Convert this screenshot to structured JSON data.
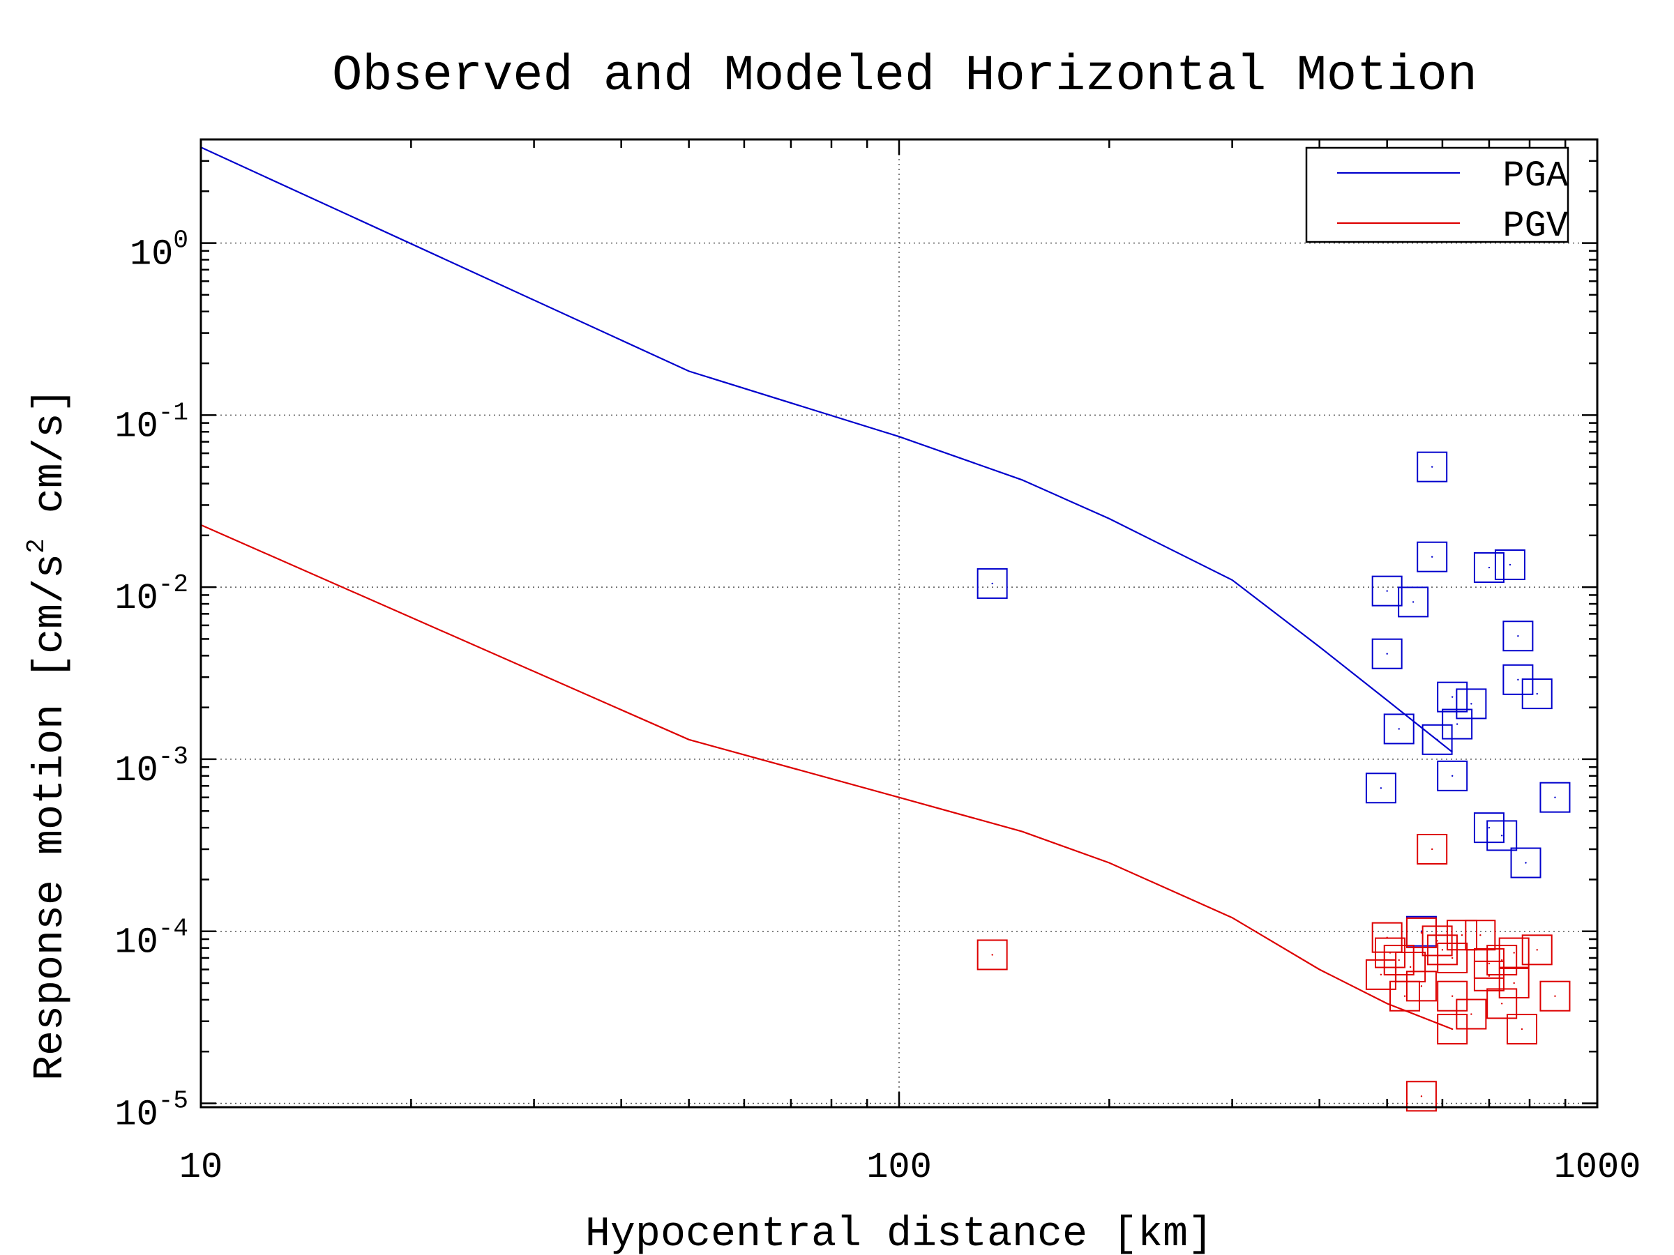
{
  "chart_data": {
    "type": "scatter",
    "title": "Observed and Modeled Horizontal Motion",
    "xlabel": "Hypocentral distance [km]",
    "ylabel": "Response motion [cm/s",
    "ylabel_sup": "2",
    "ylabel_tail": "  cm/s]",
    "xscale": "log",
    "yscale": "log",
    "xlim": [
      10,
      1000
    ],
    "ylim": [
      9.5e-06,
      4
    ],
    "xticks": [
      {
        "value": 10,
        "label": "10"
      },
      {
        "value": 100,
        "label": "100"
      },
      {
        "value": 1000,
        "label": "1000"
      }
    ],
    "yticks": [
      {
        "value": 1,
        "base": "10",
        "exp": "0"
      },
      {
        "value": 0.1,
        "base": "10",
        "exp": "-1"
      },
      {
        "value": 0.01,
        "base": "10",
        "exp": "-2"
      },
      {
        "value": 0.001,
        "base": "10",
        "exp": "-3"
      },
      {
        "value": 0.0001,
        "base": "10",
        "exp": "-4"
      },
      {
        "value": 1e-05,
        "base": "10",
        "exp": "-5"
      }
    ],
    "grid": true,
    "legend_position": "top-right",
    "colors": {
      "PGA": "#0000cc",
      "PGV": "#dd0000"
    },
    "series": [
      {
        "name": "PGA",
        "color": "#0000cc",
        "line": [
          [
            10,
            3.6
          ],
          [
            50,
            0.18
          ],
          [
            100,
            0.075
          ],
          [
            150,
            0.042
          ],
          [
            200,
            0.025
          ],
          [
            300,
            0.011
          ],
          [
            400,
            0.0045
          ],
          [
            500,
            0.0022
          ],
          [
            620,
            0.0011
          ]
        ],
        "points": [
          [
            136,
            0.0105
          ],
          [
            580,
            0.05
          ],
          [
            580,
            0.015
          ],
          [
            700,
            0.013
          ],
          [
            750,
            0.0135
          ],
          [
            500,
            0.0095
          ],
          [
            545,
            0.0082
          ],
          [
            500,
            0.0041
          ],
          [
            770,
            0.0052
          ],
          [
            770,
            0.0029
          ],
          [
            820,
            0.0024
          ],
          [
            620,
            0.0023
          ],
          [
            660,
            0.0021
          ],
          [
            630,
            0.0016
          ],
          [
            520,
            0.0015
          ],
          [
            590,
            0.0013
          ],
          [
            620,
            0.0008
          ],
          [
            490,
            0.00068
          ],
          [
            870,
            0.0006
          ],
          [
            700,
            0.0004
          ],
          [
            730,
            0.00036
          ],
          [
            790,
            0.00025
          ],
          [
            560,
            0.0001
          ]
        ]
      },
      {
        "name": "PGV",
        "color": "#dd0000",
        "line": [
          [
            10,
            0.023
          ],
          [
            50,
            0.0013
          ],
          [
            100,
            0.0006
          ],
          [
            150,
            0.00038
          ],
          [
            200,
            0.00025
          ],
          [
            300,
            0.00012
          ],
          [
            400,
            6e-05
          ],
          [
            500,
            3.8e-05
          ],
          [
            620,
            2.7e-05
          ]
        ],
        "points": [
          [
            136,
            7.3e-05
          ],
          [
            580,
            0.0003
          ],
          [
            500,
            9.2e-05
          ],
          [
            505,
            7.5e-05
          ],
          [
            520,
            6.8e-05
          ],
          [
            540,
            6.2e-05
          ],
          [
            560,
            9.8e-05
          ],
          [
            590,
            8.8e-05
          ],
          [
            600,
            7.8e-05
          ],
          [
            620,
            7e-05
          ],
          [
            640,
            9.5e-05
          ],
          [
            680,
            9.5e-05
          ],
          [
            700,
            6.5e-05
          ],
          [
            730,
            6.8e-05
          ],
          [
            760,
            7.5e-05
          ],
          [
            820,
            7.8e-05
          ],
          [
            490,
            5.6e-05
          ],
          [
            700,
            5.5e-05
          ],
          [
            760,
            5e-05
          ],
          [
            560,
            4.8e-05
          ],
          [
            530,
            4.2e-05
          ],
          [
            620,
            4.2e-05
          ],
          [
            730,
            3.8e-05
          ],
          [
            870,
            4.2e-05
          ],
          [
            660,
            3.3e-05
          ],
          [
            620,
            2.7e-05
          ],
          [
            780,
            2.7e-05
          ],
          [
            560,
            1.1e-05
          ]
        ]
      }
    ]
  }
}
